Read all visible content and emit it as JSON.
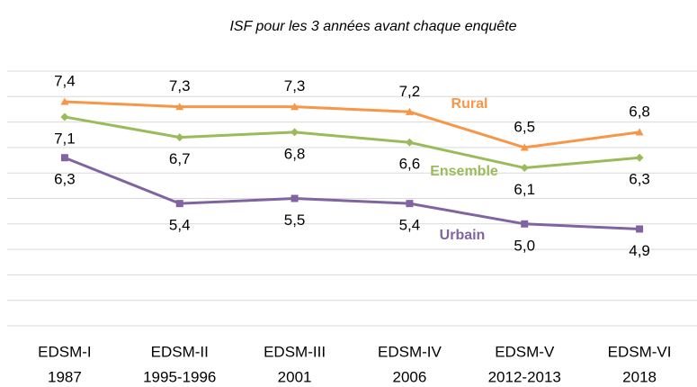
{
  "chart_data": {
    "type": "line",
    "title": "ISF pour les 3 années avant chaque enquête",
    "categories": [
      [
        "EDSM-I",
        "1987"
      ],
      [
        "EDSM-II",
        "1995-1996"
      ],
      [
        "EDSM-III",
        "2001"
      ],
      [
        "EDSM-IV",
        "2006"
      ],
      [
        "EDSM-V",
        "2012-2013"
      ],
      [
        "EDSM-VI",
        "2018"
      ]
    ],
    "series": [
      {
        "name": "Rural",
        "color": "#f79646",
        "marker": "triangle",
        "values": [
          7.4,
          7.3,
          7.3,
          7.2,
          6.5,
          6.8
        ],
        "value_labels": [
          "7,4",
          "7,3",
          "7,3",
          "7,2",
          "6,5",
          "6,8"
        ]
      },
      {
        "name": "Ensemble",
        "color": "#9bbb59",
        "marker": "diamond",
        "values": [
          7.1,
          6.7,
          6.8,
          6.6,
          6.1,
          6.3
        ],
        "value_labels": [
          "7,1",
          "6,7",
          "6,8",
          "6,6",
          "6,1",
          "6,3"
        ]
      },
      {
        "name": "Urbain",
        "color": "#8064a2",
        "marker": "square",
        "values": [
          6.3,
          5.4,
          5.5,
          5.4,
          5.0,
          4.9
        ],
        "value_labels": [
          "6,3",
          "5,4",
          "5,5",
          "5,4",
          "5,0",
          "4,9"
        ]
      }
    ],
    "ylim": [
      3,
      8
    ],
    "yticks": [
      3,
      3.5,
      4,
      4.5,
      5,
      5.5,
      6,
      6.5,
      7,
      7.5,
      8
    ],
    "grid": true
  }
}
